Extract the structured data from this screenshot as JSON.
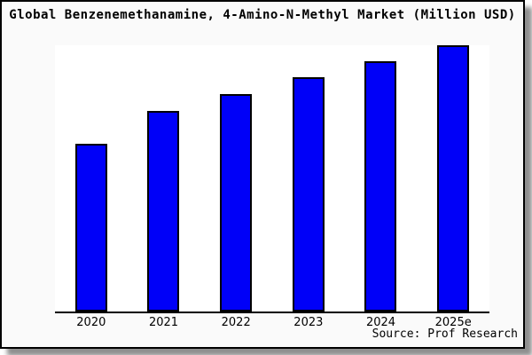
{
  "title": "Global Benzenemethanamine, 4-Amino-N-Methyl Market (Million USD)",
  "source_label": "Source: Prof Research",
  "colors": {
    "bar_fill": "#0000f8",
    "bar_border": "#000000",
    "frame_background": "#fafafa",
    "plot_background": "#ffffff",
    "axis": "#000000",
    "frame_border": "#000000",
    "shadow": "#8f8f8f"
  },
  "chart_data": {
    "type": "bar",
    "title": "Global Benzenemethanamine, 4-Amino-N-Methyl Market (Million USD)",
    "categories": [
      "2020",
      "2021",
      "2022",
      "2023",
      "2024",
      "2025e"
    ],
    "values": [
      63,
      75.3,
      81.7,
      88,
      94,
      100
    ],
    "values_note": "relative index estimated from bar heights; no y-axis scale shown; 2025e = 100",
    "xlabel": "",
    "ylabel": "",
    "ylim": [
      0,
      100
    ],
    "grid": false,
    "legend": false,
    "y_axis_ticks": false,
    "annotation": "Source: Prof Research"
  }
}
